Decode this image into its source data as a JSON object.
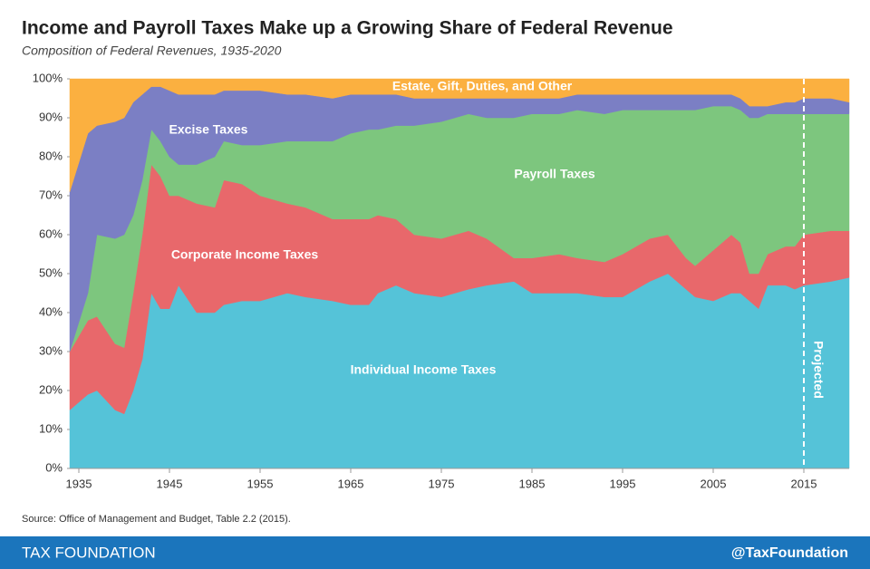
{
  "chart_data": {
    "type": "stacked-area",
    "title": "Income and Payroll Taxes Make up a Growing Share of Federal Revenue",
    "subtitle": "Composition of Federal Revenues, 1935-2020",
    "x": [
      1934,
      1936,
      1937,
      1939,
      1940,
      1941,
      1942,
      1943,
      1944,
      1945,
      1946,
      1948,
      1950,
      1951,
      1953,
      1955,
      1958,
      1960,
      1963,
      1965,
      1967,
      1968,
      1970,
      1972,
      1975,
      1978,
      1980,
      1983,
      1985,
      1988,
      1990,
      1993,
      1995,
      1998,
      2000,
      2002,
      2003,
      2005,
      2007,
      2008,
      2009,
      2010,
      2011,
      2013,
      2014,
      2015,
      2018,
      2020
    ],
    "series": [
      {
        "name": "Individual Income Taxes",
        "color": "#55c3d8",
        "values": [
          15,
          19,
          20,
          15,
          14,
          20,
          28,
          45,
          41,
          41,
          47,
          40,
          40,
          42,
          43,
          43,
          45,
          44,
          43,
          42,
          42,
          45,
          47,
          45,
          44,
          46,
          47,
          48,
          45,
          45,
          45,
          44,
          44,
          48,
          50,
          46,
          44,
          43,
          45,
          45,
          43,
          41,
          47,
          47,
          46,
          47,
          48,
          49
        ]
      },
      {
        "name": "Corporate Income Taxes",
        "color": "#e8686b",
        "values": [
          15,
          19,
          19,
          17,
          17,
          25,
          32,
          33,
          34,
          29,
          23,
          28,
          27,
          32,
          30,
          27,
          23,
          23,
          21,
          22,
          22,
          20,
          17,
          15,
          15,
          15,
          12,
          6,
          9,
          10,
          9,
          9,
          11,
          11,
          10,
          8,
          8,
          13,
          15,
          13,
          7,
          9,
          8,
          10,
          11,
          13,
          13,
          12
        ]
      },
      {
        "name": "Payroll Taxes",
        "color": "#7dc67e",
        "values": [
          0,
          7,
          21,
          27,
          29,
          20,
          14,
          9,
          9,
          10,
          8,
          10,
          13,
          10,
          10,
          13,
          16,
          17,
          20,
          22,
          23,
          22,
          24,
          28,
          30,
          30,
          31,
          36,
          37,
          36,
          38,
          38,
          37,
          33,
          32,
          38,
          40,
          37,
          33,
          34,
          40,
          40,
          36,
          34,
          34,
          31,
          30,
          30
        ]
      },
      {
        "name": "Excise Taxes",
        "color": "#7b7fc4",
        "values": [
          41,
          41,
          28,
          30,
          30,
          29,
          22,
          11,
          14,
          17,
          18,
          18,
          16,
          13,
          14,
          14,
          12,
          12,
          11,
          10,
          9,
          9,
          8,
          7,
          6,
          4,
          5,
          5,
          4,
          4,
          4,
          5,
          4,
          4,
          4,
          4,
          4,
          3,
          3,
          3,
          3,
          3,
          2,
          3,
          3,
          4,
          4,
          3
        ]
      },
      {
        "name": "Estate, Gift, Duties, and Other",
        "color": "#fbb040",
        "values": [
          29,
          14,
          12,
          11,
          10,
          6,
          4,
          2,
          2,
          3,
          4,
          4,
          4,
          3,
          3,
          3,
          4,
          4,
          5,
          4,
          4,
          4,
          4,
          5,
          5,
          5,
          5,
          5,
          5,
          5,
          4,
          4,
          4,
          4,
          4,
          4,
          4,
          4,
          4,
          5,
          7,
          7,
          7,
          6,
          6,
          5,
          5,
          6
        ]
      }
    ],
    "xlim": [
      1934,
      2020
    ],
    "xticks": [
      1935,
      1945,
      1955,
      1965,
      1975,
      1985,
      1995,
      2005,
      2015
    ],
    "ylim": [
      0,
      100
    ],
    "yticks": [
      {
        "value": 0,
        "label": "0%"
      },
      {
        "value": 10,
        "label": "10%"
      },
      {
        "value": 20,
        "label": "20%"
      },
      {
        "value": 30,
        "label": "30%"
      },
      {
        "value": 40,
        "label": "40%"
      },
      {
        "value": 50,
        "label": "50%"
      },
      {
        "value": 60,
        "label": "60%"
      },
      {
        "value": 70,
        "label": "70%"
      },
      {
        "value": 80,
        "label": "80%"
      },
      {
        "value": 90,
        "label": "90%"
      },
      {
        "value": 100,
        "label": "100%"
      }
    ],
    "projection": {
      "x": 2015,
      "label": "Projected"
    },
    "source": "Source: Office of Management and Budget, Table 2.2 (2015).",
    "footer_left": "TAX FOUNDATION",
    "footer_right": "@TaxFoundation"
  }
}
